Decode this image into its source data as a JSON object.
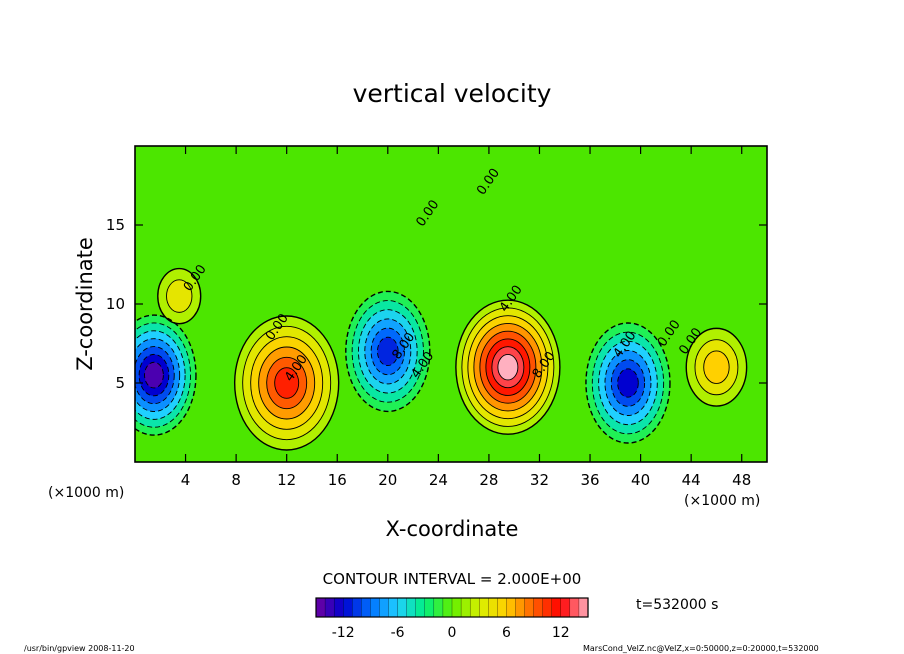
{
  "chart_data": {
    "type": "heatmap",
    "title": "vertical velocity",
    "xlabel": "X-coordinate",
    "ylabel": "Z-coordinate",
    "x_unit_label": "(×1000 m)",
    "xlim": [
      0,
      50
    ],
    "ylim": [
      0,
      20
    ],
    "xticks": [
      4,
      8,
      12,
      16,
      20,
      24,
      28,
      32,
      36,
      40,
      44,
      48
    ],
    "yticks": [
      5,
      10,
      15
    ],
    "grid": false,
    "contour_interval_text": "CONTOUR INTERVAL = 2.000E+00",
    "contour_labels": [
      {
        "text": "0.00",
        "x": 5.0,
        "z": 11.5
      },
      {
        "text": "0.00",
        "x": 11.5,
        "z": 8.4
      },
      {
        "text": "4.00",
        "x": 13.0,
        "z": 5.8
      },
      {
        "text": "8.00",
        "x": 21.5,
        "z": 7.2
      },
      {
        "text": "4.00",
        "x": 23.0,
        "z": 6.0
      },
      {
        "text": "0.00",
        "x": 23.4,
        "z": 15.6
      },
      {
        "text": "0.00",
        "x": 28.2,
        "z": 17.6
      },
      {
        "text": "4.00",
        "x": 30.0,
        "z": 10.2
      },
      {
        "text": "8.00",
        "x": 32.6,
        "z": 6.0
      },
      {
        "text": "4.00",
        "x": 39.0,
        "z": 7.3
      },
      {
        "text": "0.00",
        "x": 42.5,
        "z": 8.0
      },
      {
        "text": "0.00",
        "x": 44.2,
        "z": 7.5
      }
    ],
    "field_features": [
      {
        "kind": "downdraft",
        "x": 1.5,
        "z": 5.5,
        "peak": -14
      },
      {
        "kind": "updraft",
        "x": 12.0,
        "z": 5.0,
        "peak": 11
      },
      {
        "kind": "downdraft",
        "x": 20.0,
        "z": 7.0,
        "peak": -11
      },
      {
        "kind": "updraft",
        "x": 29.5,
        "z": 6.0,
        "peak": 15
      },
      {
        "kind": "downdraft",
        "x": 39.0,
        "z": 5.0,
        "peak": -12
      },
      {
        "kind": "updraft",
        "x": 46.0,
        "z": 6.0,
        "peak": 6
      },
      {
        "kind": "updraft",
        "x": 3.5,
        "z": 10.5,
        "peak": 4
      }
    ],
    "colorbar": {
      "min": -15,
      "max": 15,
      "ticks": [
        -12,
        -6,
        0,
        6,
        12
      ],
      "colormap": [
        "#7000a0",
        "#0000d0",
        "#0070ff",
        "#20d0ff",
        "#00f080",
        "#60f000",
        "#d8f000",
        "#ffd000",
        "#ff6000",
        "#ff0000",
        "#ffb0c0"
      ]
    },
    "time_label": "t=532000  s"
  },
  "footer": {
    "left": "/usr/bin/gpview   2008-11-20",
    "right": "MarsCond_VelZ.nc@VelZ,x=0:50000,z=0:20000,t=532000"
  },
  "colors": {
    "background": "#4ce600",
    "frame": "#000000"
  }
}
